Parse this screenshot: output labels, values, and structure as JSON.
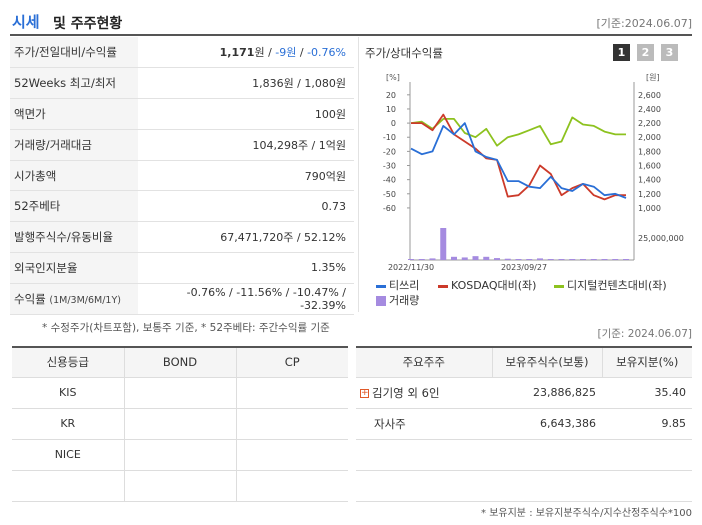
{
  "header": {
    "title_a": "시세",
    "title_b": "및 주주현황",
    "date": "[기준:2024.06.07]"
  },
  "info": {
    "price_label": "주가/전일대비/수익률",
    "price": "1,171",
    "won": "원",
    "change": "-9원",
    "change_pct": "-0.76%",
    "sep": " / ",
    "w52_label": "52Weeks 최고/최저",
    "w52_value": "1,836원 / 1,080원",
    "par_label": "액면가",
    "par_value": "100원",
    "volume_label": "거래량/거래대금",
    "volume_value": "104,298주 / 1억원",
    "mcap_label": "시가총액",
    "mcap_value": "790억원",
    "beta_label": "52주베타",
    "beta_value": "0.73",
    "shares_label": "발행주식수/유동비율",
    "shares_value": "67,471,720주 / 52.12%",
    "foreign_label": "외국인지분율",
    "foreign_value": "1.35%",
    "return_label": "수익률",
    "return_periods": "(1M/3M/6M/1Y)",
    "return_1m": "-0.76%",
    "return_3m": "-11.56%",
    "return_6m": "-10.47%",
    "return_1y": "-32.39%"
  },
  "panel": {
    "title": "주가/상대수익률",
    "buttons": [
      "1",
      "2",
      "3"
    ]
  },
  "chart_data": {
    "type": "line",
    "left_axis_unit": "[%]",
    "right_axis_unit": "[원]",
    "left_ticks": [
      "20",
      "10",
      "0",
      "-10",
      "-20",
      "-30",
      "-40",
      "-50",
      "-60"
    ],
    "right_ticks": [
      "2,600",
      "2,400",
      "2,200",
      "2,000",
      "1,800",
      "1,600",
      "1,400",
      "1,200",
      "1,000"
    ],
    "volume_tick": "25,000,000",
    "x_labels": [
      "2022/11/30",
      "2023/09/27"
    ],
    "ylim_left": [
      -65,
      22
    ],
    "colors": {
      "tisseuri": "#2a6fd6",
      "kosdaq": "#cc3a2a",
      "digital": "#8dc21f",
      "volume": "#a58be0"
    },
    "series": [
      {
        "name": "티쓰리",
        "values": [
          -18,
          -22,
          -20,
          -2,
          -8,
          0,
          -20,
          -24,
          -26,
          -41,
          -41,
          -45,
          -46,
          -38,
          -46,
          -48,
          -43,
          -45,
          -51,
          -50,
          -53
        ]
      },
      {
        "name": "KOSDAQ대비(좌)",
        "values": [
          0,
          0,
          -5,
          6,
          -8,
          -13,
          -18,
          -25,
          -26,
          -52,
          -51,
          -44,
          -30,
          -36,
          -51,
          -46,
          -43,
          -51,
          -54,
          -51,
          -51
        ]
      },
      {
        "name": "디지털컨텐츠대비(좌)",
        "values": [
          0,
          1,
          -4,
          3,
          3,
          -7,
          -10,
          -4,
          -16,
          -10,
          -8,
          -5,
          -2,
          -15,
          -13,
          4,
          -1,
          -2,
          -6,
          -8,
          -8
        ]
      },
      {
        "name": "거래량",
        "values": [
          0.02,
          0.03,
          0.05,
          1.0,
          0.1,
          0.08,
          0.12,
          0.1,
          0.06,
          0.04,
          0.03,
          0.02,
          0.05,
          0.02,
          0.02,
          0.02,
          0.01,
          0.02,
          0.02,
          0.01,
          0.02
        ]
      }
    ]
  },
  "notes": {
    "note1": "* 수정주가(차트포함), 보통주 기준, * 52주베타: 주간수익률 기준",
    "date2": "[기준: 2024.06.07]",
    "note2": "* 보유지분 : 보유지분주식수/지수산정주식수*100"
  },
  "credit": {
    "headers": [
      "신용등급",
      "BOND",
      "CP"
    ],
    "rows": [
      [
        "KIS",
        "",
        ""
      ],
      [
        "KR",
        "",
        ""
      ],
      [
        "NICE",
        "",
        ""
      ],
      [
        "",
        "",
        ""
      ]
    ]
  },
  "holders": {
    "headers": [
      "주요주주",
      "보유주식수(보통)",
      "보유지분(%)"
    ],
    "rows": [
      {
        "name": "김기영 외 6인",
        "shares": "23,886,825",
        "pct": "35.40"
      },
      {
        "name": "자사주",
        "shares": "6,643,386",
        "pct": "9.85"
      },
      {
        "name": "",
        "shares": "",
        "pct": ""
      },
      {
        "name": "",
        "shares": "",
        "pct": ""
      }
    ]
  }
}
